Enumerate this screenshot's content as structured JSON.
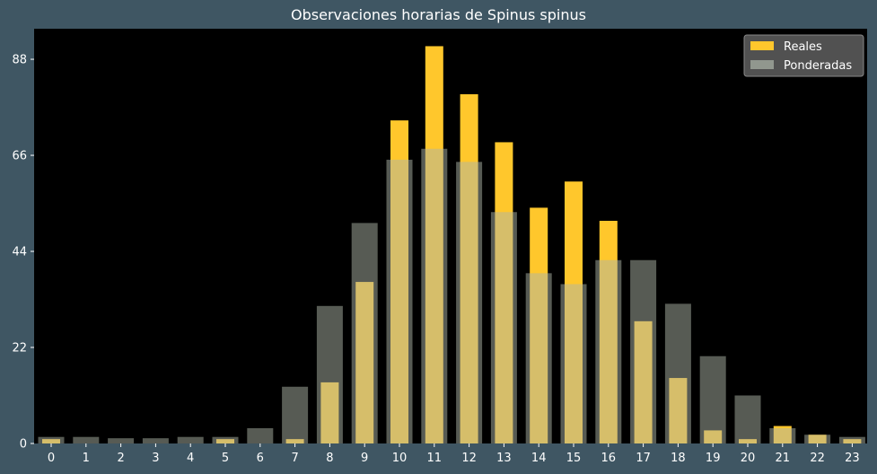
{
  "chart_data": {
    "type": "bar",
    "title": "Observaciones horarias de Spinus spinus",
    "xlabel": "",
    "ylabel": "",
    "categories": [
      "0",
      "1",
      "2",
      "3",
      "4",
      "5",
      "6",
      "7",
      "8",
      "9",
      "10",
      "11",
      "12",
      "13",
      "14",
      "15",
      "16",
      "17",
      "18",
      "19",
      "20",
      "21",
      "22",
      "23"
    ],
    "yticks": [
      0,
      22,
      44,
      66,
      88
    ],
    "ylim": [
      0,
      95
    ],
    "grid": false,
    "legend_position": "top-right",
    "series": [
      {
        "name": "Reales",
        "color": "#ffc72c",
        "values": [
          1,
          0,
          0,
          0,
          0,
          1,
          0,
          1,
          14,
          37,
          74,
          91,
          80,
          69,
          54,
          60,
          51,
          28,
          15,
          3,
          1,
          4,
          2,
          1
        ]
      },
      {
        "name": "Ponderadas",
        "color": "#adb5a8",
        "values": [
          1.5,
          1.5,
          1.2,
          1.2,
          1.5,
          1.5,
          3.5,
          13,
          31.5,
          50.5,
          65,
          67.5,
          64.5,
          53,
          39,
          36.5,
          42,
          42,
          32,
          20,
          11,
          3.5,
          2,
          1.5
        ]
      }
    ]
  },
  "colors": {
    "page_background": "#3f5663",
    "plot_background": "#000000",
    "text": "#ffffff",
    "legend_background": "#555555"
  }
}
